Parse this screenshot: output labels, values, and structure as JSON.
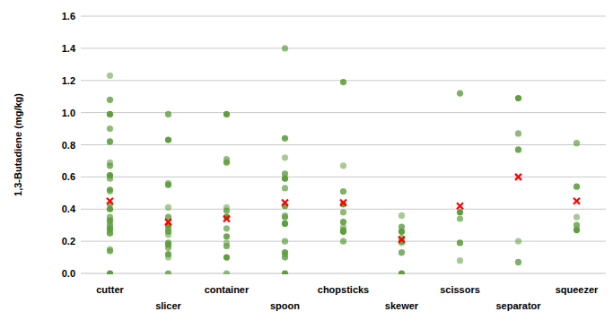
{
  "chart_data": {
    "type": "strip",
    "y_label": "1,3-Butadiene (mg/kg)",
    "categories": [
      "cutter",
      "slicer",
      "container",
      "spoon",
      "chopsticks",
      "skewer",
      "scissors",
      "separator",
      "squeezer"
    ],
    "series": [
      {
        "type": "strip",
        "color": "#5e9e3e",
        "marker": "circle",
        "values": [
          [
            1.23,
            1.08,
            0.99,
            0.9,
            0.82,
            0.69,
            0.67,
            0.61,
            0.59,
            0.52,
            0.51,
            0.43,
            0.4,
            0.35,
            0.33,
            0.32,
            0.3,
            0.28,
            0.27,
            0.25,
            0.15,
            0.14,
            0.0
          ],
          [
            0.99,
            0.83,
            0.56,
            0.55,
            0.41,
            0.35,
            0.3,
            0.28,
            0.26,
            0.24,
            0.19,
            0.18,
            0.16,
            0.12,
            0.1,
            0.0
          ],
          [
            0.99,
            0.71,
            0.69,
            0.41,
            0.39,
            0.35,
            0.28,
            0.23,
            0.19,
            0.17,
            0.1,
            0.0
          ],
          [
            1.4,
            0.84,
            0.72,
            0.62,
            0.59,
            0.53,
            0.42,
            0.36,
            0.35,
            0.31,
            0.2,
            0.13,
            0.12,
            0.1,
            0.0
          ],
          [
            1.19,
            0.67,
            0.51,
            0.43,
            0.38,
            0.32,
            0.29,
            0.27,
            0.26,
            0.2
          ],
          [
            0.36,
            0.29,
            0.26,
            0.22,
            0.2,
            0.19,
            0.13,
            0.0
          ],
          [
            1.12,
            0.38,
            0.34,
            0.19,
            0.08
          ],
          [
            1.09,
            0.87,
            0.77,
            0.2,
            0.07
          ],
          [
            0.81,
            0.54,
            0.35,
            0.3,
            0.27
          ]
        ]
      },
      {
        "type": "scatter",
        "color": "#ff0000",
        "marker": "x",
        "values": [
          0.45,
          0.32,
          0.34,
          0.44,
          0.44,
          0.21,
          0.42,
          0.6,
          0.45
        ]
      }
    ],
    "ylim": [
      0,
      1.6
    ],
    "yticks": [
      {
        "value": 0,
        "label": "0.0"
      },
      0.2,
      0.4,
      0.6,
      0.8,
      {
        "value": 1,
        "label": "1.0"
      },
      1.2,
      1.4,
      1.6
    ],
    "grid": true
  }
}
